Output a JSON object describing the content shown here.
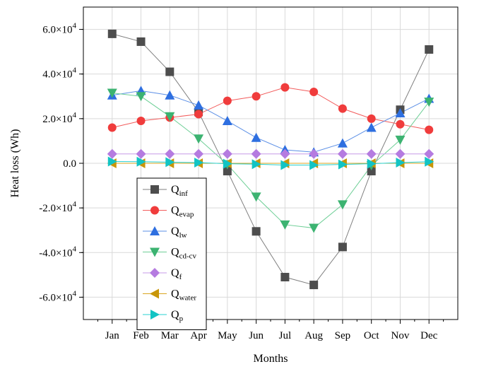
{
  "chart_data": {
    "type": "line",
    "xlabel": "Months",
    "ylabel": "Heat loss (Wh)",
    "categories": [
      "Jan",
      "Feb",
      "Mar",
      "Apr",
      "May",
      "Jun",
      "Jul",
      "Aug",
      "Sep",
      "Oct",
      "Nov",
      "Dec"
    ],
    "ylim": [
      -70000,
      70000
    ],
    "yticks": [
      -60000,
      -40000,
      -20000,
      0,
      20000,
      40000,
      60000
    ],
    "ytick_labels": [
      {
        "mant": "-6.0×10",
        "exp": "4"
      },
      {
        "mant": "-4.0×10",
        "exp": "4"
      },
      {
        "mant": "-2.0×10",
        "exp": "4"
      },
      {
        "mant": "0.0",
        "exp": ""
      },
      {
        "mant": "2.0×10",
        "exp": "4"
      },
      {
        "mant": "4.0×10",
        "exp": "4"
      },
      {
        "mant": "6.0×10",
        "exp": "4"
      }
    ],
    "grid": true,
    "legend_position": "bottom-left",
    "series": [
      {
        "base": "Q",
        "sub": "inf",
        "color": "#7f7f7f",
        "marker": "square",
        "marker_color": "#4d4d4d",
        "values": [
          58000,
          54500,
          41000,
          23000,
          -3500,
          -30500,
          -51000,
          -54500,
          -37500,
          -3500,
          24000,
          51000
        ]
      },
      {
        "base": "Q",
        "sub": "evap",
        "color": "#f25c5c",
        "marker": "circle",
        "marker_color": "#f03c3c",
        "values": [
          16000,
          19000,
          20500,
          22000,
          28000,
          30000,
          34000,
          32000,
          24500,
          20000,
          17500,
          15000
        ]
      },
      {
        "base": "Q",
        "sub": "lw",
        "color": "#5b8fe6",
        "marker": "triangle-up",
        "marker_color": "#2e6fe0",
        "values": [
          30500,
          32500,
          30500,
          26000,
          19000,
          11500,
          6000,
          5000,
          9000,
          16000,
          22500,
          29000
        ]
      },
      {
        "base": "Q",
        "sub": "cd-cv",
        "color": "#6fcf97",
        "marker": "triangle-down",
        "marker_color": "#3cb371",
        "values": [
          31500,
          30000,
          21000,
          11000,
          -500,
          -15000,
          -27500,
          -29000,
          -18500,
          -1000,
          10500,
          27500
        ]
      },
      {
        "base": "Q",
        "sub": "f",
        "color": "#c79be8",
        "marker": "diamond",
        "marker_color": "#b57be0",
        "values": [
          4200,
          4200,
          4200,
          4200,
          4200,
          4200,
          4200,
          4200,
          4200,
          4200,
          4200,
          4200
        ]
      },
      {
        "base": "Q",
        "sub": "water",
        "color": "#d9a520",
        "marker": "triangle-left",
        "marker_color": "#c8960a",
        "values": [
          0,
          0,
          0,
          0,
          0,
          0,
          0,
          0,
          0,
          0,
          0,
          0
        ]
      },
      {
        "base": "Q",
        "sub": "p",
        "color": "#28d0d0",
        "marker": "triangle-right",
        "marker_color": "#12c4c4",
        "values": [
          800,
          700,
          500,
          300,
          -200,
          -400,
          -800,
          -800,
          -500,
          -200,
          300,
          700
        ]
      }
    ]
  }
}
